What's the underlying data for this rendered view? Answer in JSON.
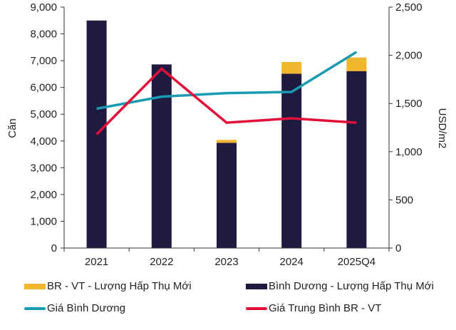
{
  "chart_data": {
    "type": "bar",
    "categories": [
      "2021",
      "2022",
      "2023",
      "2024",
      "2025Q4"
    ],
    "ylabel": "Căn",
    "ylabel_right": "USD/m2",
    "ylim": [
      0,
      9000
    ],
    "ylim_right": [
      0,
      2500
    ],
    "yticks": [
      "0",
      "1,000",
      "2,000",
      "3,000",
      "4,000",
      "5,000",
      "6,000",
      "7,000",
      "8,000",
      "9,000"
    ],
    "yticks_right": [
      "0",
      "500",
      "1,000",
      "1,500",
      "2,000",
      "2,500"
    ],
    "grid": false,
    "legend_position": "bottom",
    "series": [
      {
        "name": "Bình Dương - Lượng Hấp Thụ Mới",
        "kind": "bar-stacked",
        "axis": "left",
        "color": "#1e1a40",
        "values": [
          8500,
          6860,
          3930,
          6510,
          6610
        ]
      },
      {
        "name": "BR - VT - Lượng Hấp Thụ Mới",
        "kind": "bar-stacked",
        "axis": "left",
        "color": "#f0b62d",
        "values": [
          0,
          0,
          110,
          440,
          510
        ]
      },
      {
        "name": "Giá Bình Dương",
        "kind": "line",
        "axis": "right",
        "color": "#1b9bb2",
        "values": [
          1446,
          1571,
          1608,
          1620,
          2035
        ]
      },
      {
        "name": "Giá Trung Bình  BR - VT",
        "kind": "line",
        "axis": "right",
        "color": "#e0103a",
        "values": [
          1180,
          1860,
          1301,
          1346,
          1301
        ]
      }
    ],
    "legend_order": [
      1,
      0,
      2,
      3
    ]
  }
}
